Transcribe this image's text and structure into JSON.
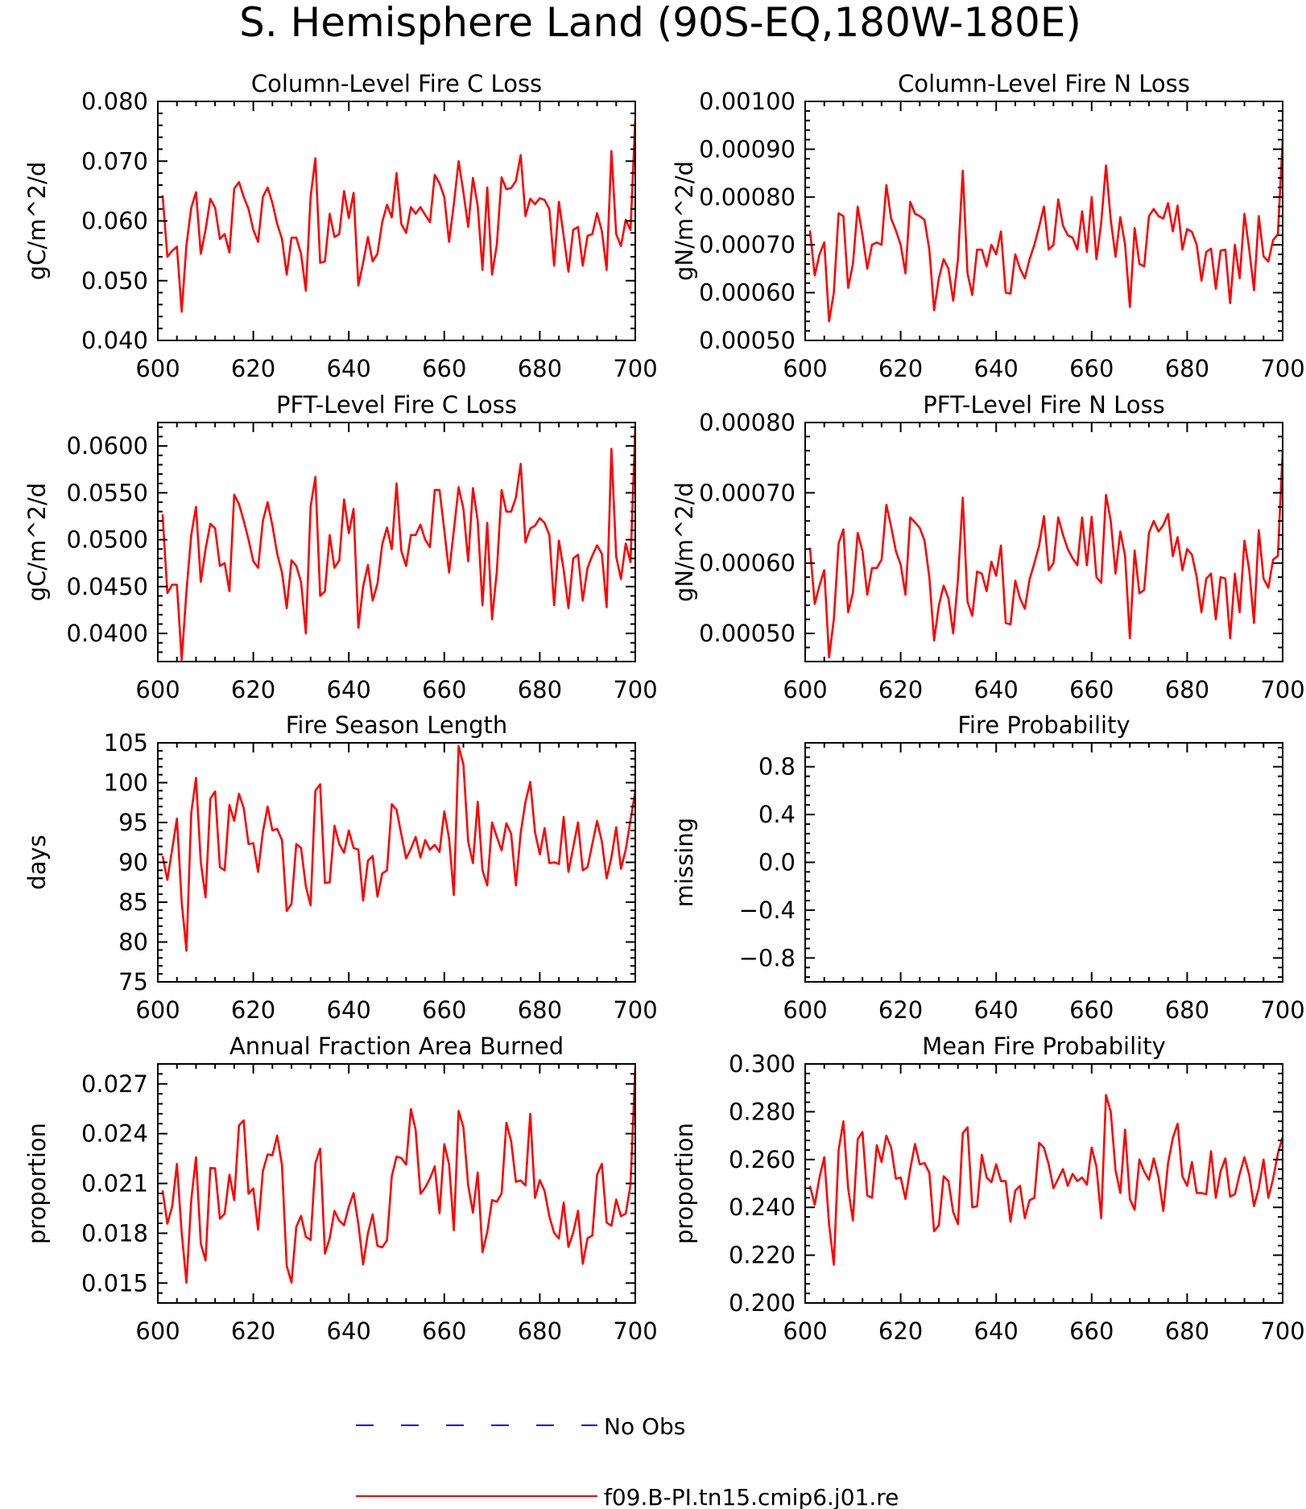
{
  "figure": {
    "title": "S. Hemisphere Land (90S-EQ,180W-180E)",
    "legend": {
      "placement": "bottom",
      "entries": [
        {
          "label": "No Obs",
          "color": "#0000ff",
          "style": "dashed"
        },
        {
          "label": "f09.B-PI.tn15.cmip6.j01.re",
          "color": "#ff0000",
          "style": "solid"
        }
      ]
    }
  },
  "chart_data": [
    {
      "type": "line",
      "title": "Column-Level Fire C Loss",
      "ylabel": "gC/m^2/d",
      "xlim": [
        600,
        700
      ],
      "ylim": [
        0.04,
        0.08
      ],
      "xticks": [
        "600",
        "620",
        "640",
        "660",
        "680",
        "700"
      ],
      "yticks": [
        "0.040",
        "0.050",
        "0.060",
        "0.070",
        "0.080"
      ],
      "series": [
        {
          "name": "f09.B-PI.tn15.cmip6.j01.re",
          "color": "#ff0000",
          "x_start": 601,
          "x_step": 1,
          "values": [
            0.0643,
            0.054,
            0.055,
            0.0557,
            0.0448,
            0.056,
            0.0622,
            0.0648,
            0.0545,
            0.0585,
            0.0637,
            0.0622,
            0.057,
            0.0578,
            0.0547,
            0.0654,
            0.0665,
            0.064,
            0.062,
            0.0585,
            0.0565,
            0.064,
            0.0656,
            0.063,
            0.0595,
            0.057,
            0.051,
            0.0572,
            0.0572,
            0.0545,
            0.0483,
            0.064,
            0.0705,
            0.053,
            0.0532,
            0.0612,
            0.0573,
            0.0578,
            0.065,
            0.0605,
            0.0647,
            0.0492,
            0.053,
            0.0573,
            0.0532,
            0.0545,
            0.0598,
            0.0627,
            0.0606,
            0.068,
            0.0595,
            0.058,
            0.0623,
            0.0612,
            0.0623,
            0.061,
            0.0598,
            0.0677,
            0.0663,
            0.064,
            0.0565,
            0.0628,
            0.07,
            0.0648,
            0.059,
            0.0672,
            0.0625,
            0.0518,
            0.0656,
            0.051,
            0.056,
            0.0673,
            0.0653,
            0.0655,
            0.0667,
            0.071,
            0.0608,
            0.0637,
            0.0628,
            0.0638,
            0.0635,
            0.062,
            0.0525,
            0.0632,
            0.0575,
            0.0515,
            0.0585,
            0.059,
            0.0525,
            0.0575,
            0.0578,
            0.0613,
            0.0583,
            0.0518,
            0.0717,
            0.0578,
            0.0558,
            0.0602,
            0.0585,
            0.077
          ]
        }
      ]
    },
    {
      "type": "line",
      "title": "Column-Level Fire N Loss",
      "ylabel": "gN/m^2/d",
      "xlim": [
        600,
        700
      ],
      "ylim": [
        0.0005,
        0.001
      ],
      "xticks": [
        "600",
        "620",
        "640",
        "660",
        "680",
        "700"
      ],
      "yticks": [
        "0.00050",
        "0.00060",
        "0.00070",
        "0.00080",
        "0.00090",
        "0.00100"
      ],
      "series": [
        {
          "name": "f09.B-PI.tn15.cmip6.j01.re",
          "color": "#ff0000",
          "x_start": 601,
          "x_step": 1,
          "values": [
            0.00073,
            0.000636,
            0.00068,
            0.000705,
            0.00054,
            0.0006,
            0.000766,
            0.00076,
            0.00061,
            0.00066,
            0.00078,
            0.00072,
            0.00065,
            0.0007,
            0.000705,
            0.0007,
            0.000825,
            0.000755,
            0.00073,
            0.0007,
            0.00064,
            0.00079,
            0.000765,
            0.00076,
            0.000752,
            0.00069,
            0.000563,
            0.00063,
            0.00067,
            0.00065,
            0.000583,
            0.00067,
            0.000855,
            0.00064,
            0.000595,
            0.00069,
            0.00069,
            0.000655,
            0.0007,
            0.00068,
            0.000728,
            0.0006,
            0.000598,
            0.00068,
            0.00065,
            0.00063,
            0.00067,
            0.0007,
            0.000738,
            0.00078,
            0.00069,
            0.0007,
            0.000795,
            0.00074,
            0.00072,
            0.000715,
            0.00069,
            0.00077,
            0.000685,
            0.0008,
            0.00067,
            0.000746,
            0.000866,
            0.000752,
            0.000675,
            0.000758,
            0.0007,
            0.00057,
            0.000735,
            0.00066,
            0.000655,
            0.00076,
            0.000775,
            0.00076,
            0.000755,
            0.000787,
            0.000728,
            0.000782,
            0.00069,
            0.000733,
            0.000727,
            0.0007,
            0.000625,
            0.000685,
            0.000692,
            0.000608,
            0.000688,
            0.00069,
            0.000578,
            0.0007,
            0.00063,
            0.000765,
            0.00069,
            0.000605,
            0.00076,
            0.000676,
            0.000665,
            0.00071,
            0.000722,
            0.00092
          ]
        }
      ]
    },
    {
      "type": "line",
      "title": "PFT-Level Fire C Loss",
      "ylabel": "gC/m^2/d",
      "xlim": [
        600,
        700
      ],
      "ylim": [
        0.037,
        0.0625
      ],
      "xticks": [
        "600",
        "620",
        "640",
        "660",
        "680",
        "700"
      ],
      "yticks": [
        "0.0400",
        "0.0450",
        "0.0500",
        "0.0550",
        "0.0600"
      ],
      "series": [
        {
          "name": "f09.B-PI.tn15.cmip6.j01.re",
          "color": "#ff0000",
          "x_start": 601,
          "x_step": 1,
          "values": [
            0.0527,
            0.0443,
            0.0452,
            0.0452,
            0.0372,
            0.0445,
            0.0505,
            0.0535,
            0.0455,
            0.049,
            0.0517,
            0.0512,
            0.0472,
            0.0475,
            0.0445,
            0.0548,
            0.0538,
            0.052,
            0.05,
            0.0477,
            0.047,
            0.052,
            0.054,
            0.0515,
            0.0485,
            0.0465,
            0.0427,
            0.0478,
            0.0472,
            0.0455,
            0.04,
            0.0535,
            0.0567,
            0.044,
            0.0445,
            0.0505,
            0.047,
            0.0478,
            0.0543,
            0.0507,
            0.0533,
            0.0406,
            0.045,
            0.0473,
            0.0435,
            0.0453,
            0.0495,
            0.0513,
            0.049,
            0.056,
            0.0488,
            0.0472,
            0.0505,
            0.0505,
            0.0516,
            0.05,
            0.0492,
            0.0553,
            0.0553,
            0.051,
            0.0465,
            0.051,
            0.0556,
            0.0533,
            0.0477,
            0.0555,
            0.052,
            0.043,
            0.0518,
            0.0415,
            0.0466,
            0.0553,
            0.053,
            0.053,
            0.0545,
            0.0581,
            0.0497,
            0.0512,
            0.0515,
            0.0523,
            0.0518,
            0.0505,
            0.043,
            0.0499,
            0.0468,
            0.0427,
            0.048,
            0.0484,
            0.0435,
            0.047,
            0.0483,
            0.0494,
            0.0485,
            0.0428,
            0.0597,
            0.0482,
            0.0458,
            0.0496,
            0.0476,
            0.062
          ]
        }
      ]
    },
    {
      "type": "line",
      "title": "PFT-Level Fire N Loss",
      "ylabel": "gN/m^2/d",
      "xlim": [
        600,
        700
      ],
      "ylim": [
        0.00046,
        0.0008
      ],
      "xticks": [
        "600",
        "620",
        "640",
        "660",
        "680",
        "700"
      ],
      "yticks": [
        "0.00050",
        "0.00060",
        "0.00070",
        "0.00080"
      ],
      "series": [
        {
          "name": "f09.B-PI.tn15.cmip6.j01.re",
          "color": "#ff0000",
          "x_start": 601,
          "x_step": 1,
          "values": [
            0.000622,
            0.000542,
            0.000568,
            0.00059,
            0.000466,
            0.00052,
            0.000628,
            0.000648,
            0.00053,
            0.000558,
            0.000643,
            0.000617,
            0.000555,
            0.000593,
            0.000593,
            0.000605,
            0.000683,
            0.000652,
            0.000617,
            0.000598,
            0.000555,
            0.000665,
            0.000658,
            0.00065,
            0.000632,
            0.00058,
            0.00049,
            0.00054,
            0.000568,
            0.00055,
            0.0005,
            0.000577,
            0.000693,
            0.000545,
            0.000525,
            0.000588,
            0.000585,
            0.00056,
            0.000602,
            0.000582,
            0.000625,
            0.000515,
            0.000513,
            0.000575,
            0.00055,
            0.000535,
            0.000577,
            0.0006,
            0.000625,
            0.000667,
            0.00059,
            0.0006,
            0.000665,
            0.00064,
            0.00062,
            0.000607,
            0.000597,
            0.000665,
            0.000597,
            0.000666,
            0.00058,
            0.000572,
            0.000697,
            0.00066,
            0.000585,
            0.000645,
            0.00061,
            0.000493,
            0.000618,
            0.000557,
            0.000562,
            0.000643,
            0.00066,
            0.000645,
            0.000654,
            0.00067,
            0.00061,
            0.000637,
            0.00059,
            0.00062,
            0.000612,
            0.00058,
            0.00053,
            0.000578,
            0.000585,
            0.00052,
            0.00058,
            0.000578,
            0.000493,
            0.000585,
            0.00053,
            0.000632,
            0.00059,
            0.000515,
            0.000647,
            0.000578,
            0.000565,
            0.000605,
            0.00061,
            0.00076
          ]
        }
      ]
    },
    {
      "type": "line",
      "title": "Fire Season Length",
      "ylabel": "days",
      "xlim": [
        600,
        700
      ],
      "ylim": [
        75,
        105
      ],
      "xticks": [
        "600",
        "620",
        "640",
        "660",
        "680",
        "700"
      ],
      "yticks": [
        "75",
        "80",
        "85",
        "90",
        "95",
        "100",
        "105"
      ],
      "series": [
        {
          "name": "f09.B-PI.tn15.cmip6.j01.re",
          "color": "#ff0000",
          "x_start": 601,
          "x_step": 1,
          "values": [
            90.8,
            87.8,
            91.6,
            95.5,
            85.0,
            78.9,
            96.2,
            100.6,
            90.0,
            85.6,
            98.0,
            98.9,
            89.4,
            89.0,
            97.2,
            95.2,
            98.6,
            96.8,
            92.3,
            92.4,
            88.8,
            93.8,
            97.0,
            94.0,
            94.2,
            92.8,
            83.9,
            84.8,
            92.3,
            91.8,
            87.0,
            84.6,
            99.0,
            99.8,
            87.4,
            87.5,
            94.6,
            92.3,
            91.2,
            94.0,
            91.8,
            91.6,
            85.2,
            90.2,
            90.8,
            85.7,
            88.6,
            89.0,
            97.3,
            96.6,
            93.5,
            90.5,
            91.7,
            93.2,
            90.6,
            92.8,
            91.6,
            92.2,
            91.3,
            96.4,
            93.0,
            85.9,
            104.6,
            102.3,
            92.6,
            89.9,
            97.6,
            89.0,
            87.1,
            95.0,
            93.2,
            91.5,
            94.9,
            93.6,
            87.1,
            93.7,
            97.6,
            100.1,
            93.8,
            91.0,
            94.3,
            89.9,
            90.0,
            89.8,
            95.7,
            88.8,
            91.9,
            95.0,
            89.0,
            89.4,
            92.3,
            95.2,
            92.6,
            88.0,
            90.6,
            94.4,
            89.2,
            91.6,
            95.3,
            98.9
          ]
        }
      ]
    },
    {
      "type": "line",
      "title": "Fire Probability",
      "ylabel": "missing",
      "xlim": [
        600,
        700
      ],
      "ylim": [
        -1.0,
        1.0
      ],
      "xticks": [
        "600",
        "620",
        "640",
        "660",
        "680",
        "700"
      ],
      "yticks": [
        "-0.8",
        "-0.4",
        "0.0",
        "0.4",
        "0.8"
      ],
      "series": []
    },
    {
      "type": "line",
      "title": "Annual Fraction Area Burned",
      "ylabel": "proportion",
      "xlim": [
        600,
        700
      ],
      "ylim": [
        0.0138,
        0.0282
      ],
      "xticks": [
        "600",
        "620",
        "640",
        "660",
        "680",
        "700"
      ],
      "yticks": [
        "0.015",
        "0.018",
        "0.021",
        "0.024",
        "0.027"
      ],
      "series": [
        {
          "name": "f09.B-PI.tn15.cmip6.j01.re",
          "color": "#ff0000",
          "x_start": 601,
          "x_step": 1,
          "values": [
            0.02058,
            0.01858,
            0.0196,
            0.02218,
            0.01803,
            0.01502,
            0.02,
            0.02258,
            0.01738,
            0.01636,
            0.02194,
            0.02191,
            0.01888,
            0.01918,
            0.02153,
            0.02,
            0.0245,
            0.0248,
            0.02038,
            0.0207,
            0.01822,
            0.02174,
            0.02275,
            0.0227,
            0.02388,
            0.02211,
            0.01603,
            0.01503,
            0.01838,
            0.01905,
            0.01779,
            0.0176,
            0.02223,
            0.02309,
            0.01677,
            0.0177,
            0.01935,
            0.01876,
            0.01848,
            0.0196,
            0.02042,
            0.01855,
            0.01612,
            0.018,
            0.01914,
            0.01724,
            0.01715,
            0.01758,
            0.02143,
            0.02262,
            0.02253,
            0.02214,
            0.02548,
            0.02422,
            0.02038,
            0.02075,
            0.0213,
            0.02203,
            0.0192,
            0.02337,
            0.02215,
            0.01818,
            0.02537,
            0.0244,
            0.02088,
            0.01924,
            0.02166,
            0.01686,
            0.01807,
            0.02,
            0.0199,
            0.0204,
            0.02465,
            0.02355,
            0.0211,
            0.02118,
            0.02088,
            0.0252,
            0.02013,
            0.0212,
            0.02055,
            0.01902,
            0.01802,
            0.01768,
            0.01985,
            0.01718,
            0.01803,
            0.01935,
            0.01616,
            0.0177,
            0.01786,
            0.02153,
            0.02218,
            0.01864,
            0.01845,
            0.02003,
            0.01903,
            0.01918,
            0.02092,
            0.028
          ]
        }
      ]
    },
    {
      "type": "line",
      "title": "Mean Fire Probability",
      "ylabel": "proportion",
      "xlim": [
        600,
        700
      ],
      "ylim": [
        0.2,
        0.3
      ],
      "xticks": [
        "600",
        "620",
        "640",
        "660",
        "680",
        "700"
      ],
      "yticks": [
        "0.200",
        "0.220",
        "0.240",
        "0.260",
        "0.280",
        "0.300"
      ],
      "series": [
        {
          "name": "f09.B-PI.tn15.cmip6.j01.re",
          "color": "#ff0000",
          "x_start": 601,
          "x_step": 1,
          "values": [
            0.249,
            0.241,
            0.2525,
            0.261,
            0.233,
            0.216,
            0.264,
            0.276,
            0.248,
            0.2345,
            0.2685,
            0.2715,
            0.245,
            0.244,
            0.266,
            0.259,
            0.27,
            0.265,
            0.252,
            0.2525,
            0.2435,
            0.256,
            0.2665,
            0.258,
            0.2585,
            0.2545,
            0.23,
            0.2325,
            0.253,
            0.251,
            0.238,
            0.233,
            0.271,
            0.2735,
            0.24,
            0.2405,
            0.262,
            0.2525,
            0.2505,
            0.258,
            0.251,
            0.251,
            0.234,
            0.247,
            0.249,
            0.2355,
            0.243,
            0.244,
            0.267,
            0.265,
            0.258,
            0.248,
            0.252,
            0.256,
            0.249,
            0.254,
            0.251,
            0.2525,
            0.2495,
            0.265,
            0.257,
            0.2355,
            0.287,
            0.28,
            0.2555,
            0.246,
            0.2725,
            0.2435,
            0.239,
            0.26,
            0.255,
            0.2515,
            0.2605,
            0.2525,
            0.2385,
            0.2585,
            0.269,
            0.275,
            0.253,
            0.249,
            0.259,
            0.246,
            0.246,
            0.2455,
            0.2635,
            0.244,
            0.255,
            0.2605,
            0.2445,
            0.2455,
            0.254,
            0.261,
            0.2535,
            0.2405,
            0.248,
            0.26,
            0.244,
            0.252,
            0.2625,
            0.2695
          ]
        }
      ]
    }
  ]
}
